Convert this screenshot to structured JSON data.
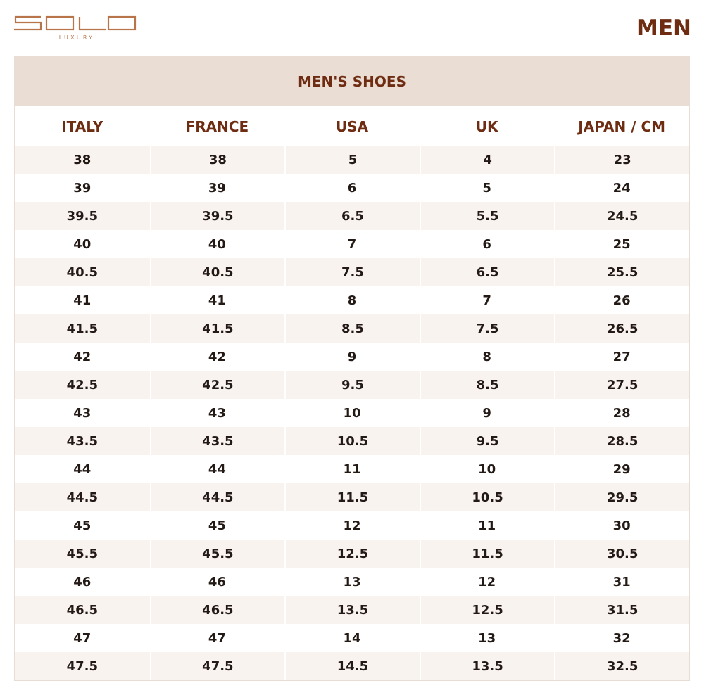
{
  "brand": {
    "name": "SOLO",
    "tagline": "LUXURY",
    "color": "#b8754a"
  },
  "page_title": "MEN",
  "table": {
    "caption": "MEN'S SHOES",
    "columns": [
      "ITALY",
      "FRANCE",
      "USA",
      "UK",
      "JAPAN / CM"
    ],
    "rows": [
      [
        "38",
        "38",
        "5",
        "4",
        "23"
      ],
      [
        "39",
        "39",
        "6",
        "5",
        "24"
      ],
      [
        "39.5",
        "39.5",
        "6.5",
        "5.5",
        "24.5"
      ],
      [
        "40",
        "40",
        "7",
        "6",
        "25"
      ],
      [
        "40.5",
        "40.5",
        "7.5",
        "6.5",
        "25.5"
      ],
      [
        "41",
        "41",
        "8",
        "7",
        "26"
      ],
      [
        "41.5",
        "41.5",
        "8.5",
        "7.5",
        "26.5"
      ],
      [
        "42",
        "42",
        "9",
        "8",
        "27"
      ],
      [
        "42.5",
        "42.5",
        "9.5",
        "8.5",
        "27.5"
      ],
      [
        "43",
        "43",
        "10",
        "9",
        "28"
      ],
      [
        "43.5",
        "43.5",
        "10.5",
        "9.5",
        "28.5"
      ],
      [
        "44",
        "44",
        "11",
        "10",
        "29"
      ],
      [
        "44.5",
        "44.5",
        "11.5",
        "10.5",
        "29.5"
      ],
      [
        "45",
        "45",
        "12",
        "11",
        "30"
      ],
      [
        "45.5",
        "45.5",
        "12.5",
        "11.5",
        "30.5"
      ],
      [
        "46",
        "46",
        "13",
        "12",
        "31"
      ],
      [
        "46.5",
        "46.5",
        "13.5",
        "12.5",
        "31.5"
      ],
      [
        "47",
        "47",
        "14",
        "13",
        "32"
      ],
      [
        "47.5",
        "47.5",
        "14.5",
        "13.5",
        "32.5"
      ]
    ]
  },
  "colors": {
    "accent": "#6e2c12",
    "header_bg": "#eaddd4",
    "row_shade": "#f9f3ef",
    "text": "#231a16"
  }
}
